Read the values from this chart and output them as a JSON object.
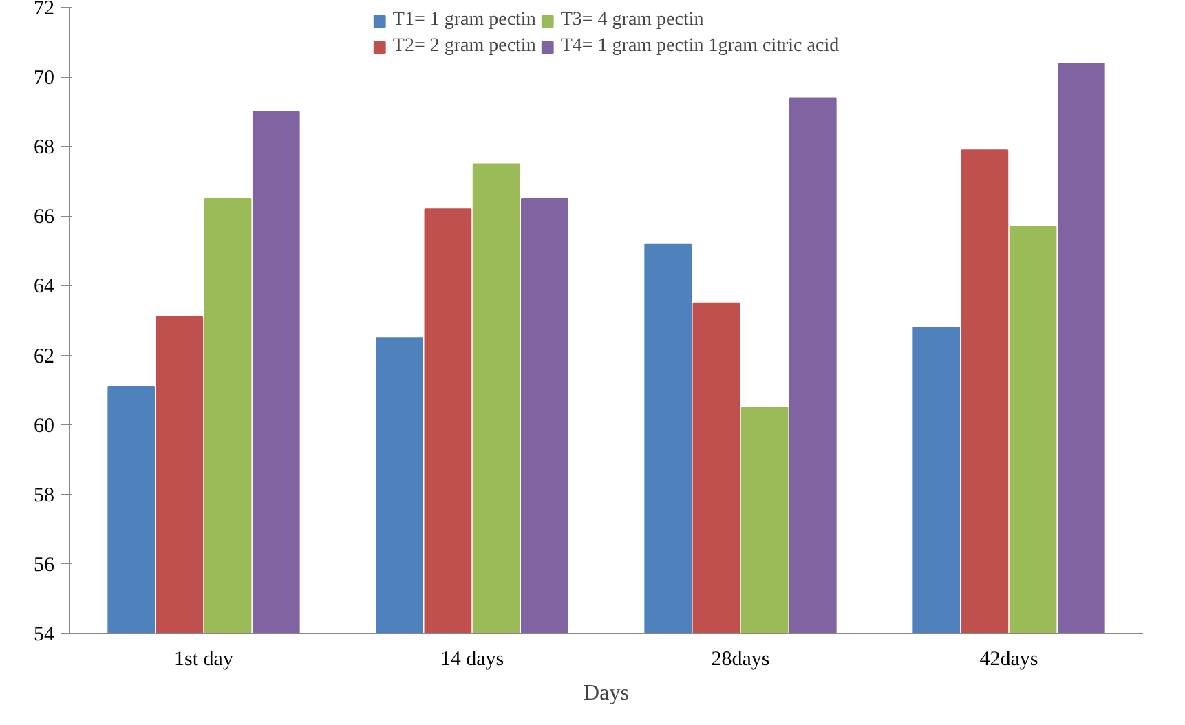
{
  "chart_data": {
    "type": "bar",
    "xlabel": "Days",
    "categories": [
      "1st day",
      "14 days",
      "28days",
      "42days"
    ],
    "series": [
      {
        "name": "T1= 1 gram pectin",
        "color": "#4f81bd",
        "values": [
          61.1,
          62.5,
          65.2,
          62.8
        ]
      },
      {
        "name": "T2= 2 gram pectin",
        "color": "#c0504d",
        "values": [
          63.1,
          66.2,
          63.5,
          67.9
        ]
      },
      {
        "name": "T3= 4 gram pectin",
        "color": "#9bbb59",
        "values": [
          66.5,
          67.5,
          60.5,
          65.7
        ]
      },
      {
        "name": "T4= 1 gram pectin 1gram citric acid",
        "color": "#8064a2",
        "values": [
          69.0,
          66.5,
          69.4,
          70.4
        ]
      }
    ],
    "ylim": [
      54,
      72
    ],
    "yticks": [
      54,
      56,
      58,
      60,
      62,
      64,
      66,
      68,
      70,
      72
    ],
    "grid": false,
    "legend": "top"
  }
}
